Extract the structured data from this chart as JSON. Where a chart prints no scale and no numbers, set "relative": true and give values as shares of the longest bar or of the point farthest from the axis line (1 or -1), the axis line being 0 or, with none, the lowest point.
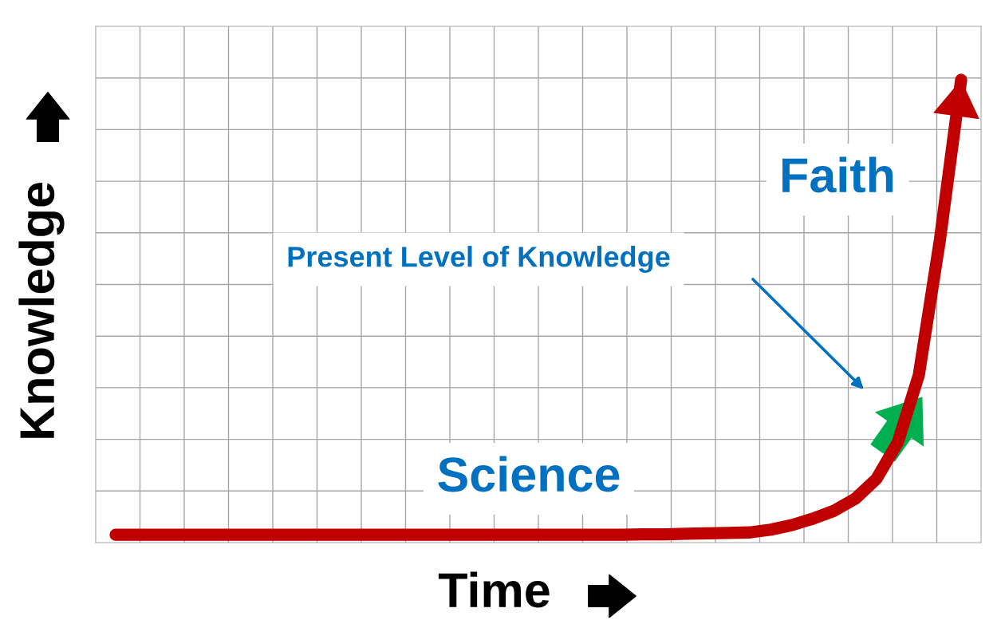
{
  "chart_data": {
    "type": "line",
    "relative": true,
    "grid": true,
    "xlabel": "Time",
    "ylabel": "Knowledge",
    "categories": [
      null,
      null,
      null,
      null,
      null,
      null,
      null,
      null,
      null,
      null,
      null,
      null,
      null,
      null,
      null,
      null,
      null,
      null,
      null,
      null,
      null,
      null,
      null,
      null,
      null,
      null,
      null,
      null,
      null,
      null,
      null,
      null,
      null,
      null,
      null,
      null,
      null,
      null,
      null,
      null,
      null
    ],
    "series": [
      {
        "color": "#c00000",
        "values": [
          0.017,
          0.017,
          0.017,
          0.017,
          0.017,
          0.017,
          0.017,
          0.017,
          0.017,
          0.017,
          0.017,
          0.017,
          0.017,
          0.017,
          0.017,
          0.017,
          0.017,
          0.017,
          0.017,
          0.017,
          0.017,
          0.017,
          0.017,
          0.017,
          0.017,
          0.018,
          0.018,
          0.019,
          0.02,
          0.021,
          0.022,
          0.028,
          0.038,
          0.052,
          0.069,
          0.095,
          0.138,
          0.216,
          0.362,
          0.655,
          1.0
        ]
      }
    ],
    "annotations": [
      "Faith",
      "Present Level of Knowledge",
      "Science"
    ]
  }
}
